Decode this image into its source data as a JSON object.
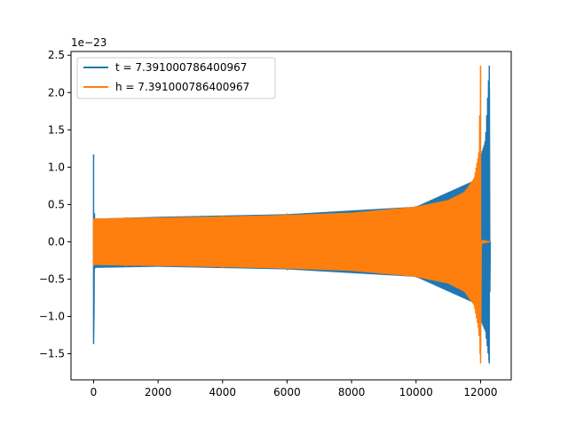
{
  "chart_data": {
    "type": "line",
    "title": "",
    "xlabel": "",
    "ylabel": "",
    "y_scale_label": "1e−23",
    "xlim": [
      -700,
      12950
    ],
    "ylim": [
      -1.85,
      2.55
    ],
    "xticks": [
      0,
      2000,
      4000,
      6000,
      8000,
      10000,
      12000
    ],
    "yticks": [
      -1.5,
      -1.0,
      -0.5,
      0.0,
      0.5,
      1.0,
      1.5,
      2.0,
      2.5
    ],
    "grid": false,
    "legend_position": "top-left",
    "series": [
      {
        "name": "t = 7.391000786400967",
        "color": "#1f77b4",
        "envelope": [
          [
            0,
            -1.37,
            1.17
          ],
          [
            30,
            -0.35,
            0.31
          ],
          [
            2000,
            -0.335,
            0.335
          ],
          [
            6000,
            -0.37,
            0.37
          ],
          [
            10000,
            -0.47,
            0.47
          ],
          [
            11800,
            -0.82,
            0.82
          ],
          [
            12000,
            -1.05,
            1.15
          ],
          [
            12150,
            -1.2,
            1.35
          ],
          [
            12270,
            -1.63,
            2.36
          ],
          [
            12300,
            -0.01,
            0.01
          ]
        ]
      },
      {
        "name": "h = 7.391000786400967",
        "color": "#ff7f0e",
        "envelope": [
          [
            0,
            -0.31,
            0.31
          ],
          [
            1000,
            -0.32,
            0.32
          ],
          [
            2000,
            -0.325,
            0.325
          ],
          [
            4000,
            -0.34,
            0.34
          ],
          [
            6000,
            -0.36,
            0.36
          ],
          [
            8000,
            -0.39,
            0.39
          ],
          [
            10000,
            -0.47,
            0.47
          ],
          [
            11000,
            -0.56,
            0.56
          ],
          [
            11500,
            -0.67,
            0.67
          ],
          [
            11800,
            -0.85,
            0.85
          ],
          [
            11950,
            -1.2,
            1.2
          ],
          [
            12000,
            -1.63,
            2.36
          ],
          [
            12020,
            -0.01,
            0.01
          ],
          [
            12300,
            0,
            0
          ]
        ]
      }
    ]
  }
}
